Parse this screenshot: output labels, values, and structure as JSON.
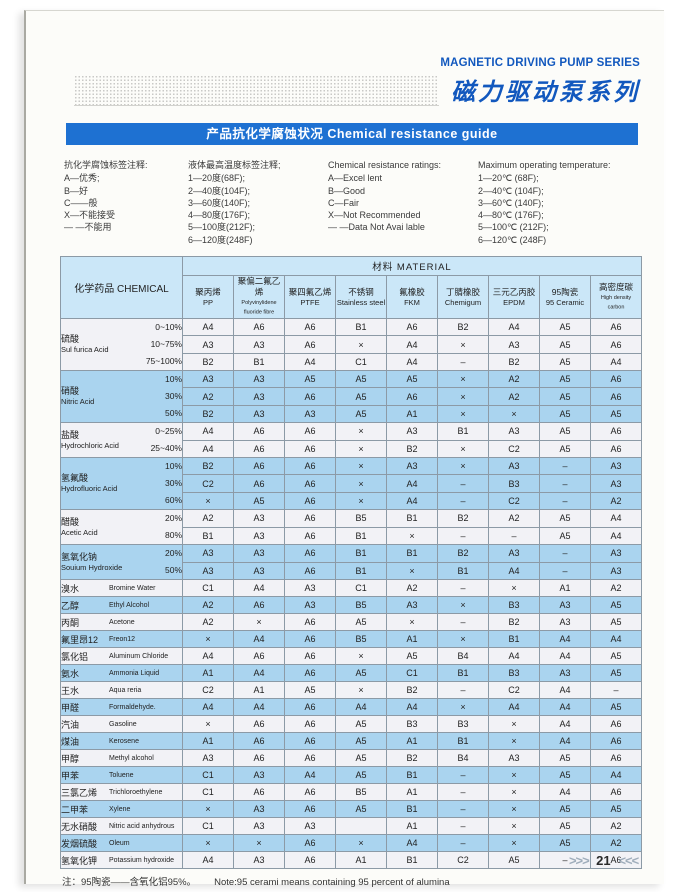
{
  "header": {
    "series_title_en": "MAGNETIC DRIVING PUMP SERIES",
    "series_title_cn": "磁力驱动泵系列",
    "banner": "产品抗化学腐蚀状况 Chemical resistance guide"
  },
  "legends": [
    {
      "title": "抗化学腐蚀标签注释:",
      "items": [
        "A—优秀;",
        "B—好",
        "C——般",
        "X—不能接受",
        "— —不能用"
      ]
    },
    {
      "title": "液体最高温度标签注释;",
      "items": [
        "1—20度(68F);",
        "2—40度(104F);",
        "3—60度(140F);",
        "4—80度(176F);",
        "5—100度(212F);",
        "6—120度(248F)"
      ]
    },
    {
      "title": "Chemical resistance ratings:",
      "items": [
        "A—Excel lent",
        "B—Good",
        "C—Fair",
        "X—Not Recommended",
        "— —Data Not Avai lable"
      ]
    },
    {
      "title": "Maximum operating temperature:",
      "items": [
        "1—20℃ (68F);",
        "2—40℃ (104F);",
        "3—60℃ (140F);",
        "4—80℃ (176F);",
        "5—100℃ (212F);",
        "6—120℃ (248F)"
      ]
    }
  ],
  "table": {
    "chemical_header": "化学药品 CHEMICAL",
    "material_header": "材料  MATERIAL",
    "materials": [
      {
        "cn": "聚丙烯",
        "en": "PP"
      },
      {
        "cn": "聚偏二氟乙烯",
        "en": "Polyvinylidene fluoride fibre"
      },
      {
        "cn": "聚四氟乙烯",
        "en": "PTFE"
      },
      {
        "cn": "不锈钢",
        "en": "Stainless steel"
      },
      {
        "cn": "氟橡胶",
        "en": "FKM"
      },
      {
        "cn": "丁腈橡胶",
        "en": "Chemigum"
      },
      {
        "cn": "三元乙丙胶",
        "en": "EPDM"
      },
      {
        "cn": "95陶瓷",
        "en": "95 Ceramic"
      },
      {
        "cn": "高密度碳",
        "en": "High density carbon"
      }
    ],
    "groups": [
      {
        "cn": "硫酸",
        "en": "Sul furica Acid",
        "shade": "light",
        "rows": [
          {
            "conc": "0~10%",
            "values": [
              "A4",
              "A6",
              "A6",
              "B1",
              "A6",
              "B2",
              "A4",
              "A5",
              "A6"
            ]
          },
          {
            "conc": "10~75%",
            "values": [
              "A3",
              "A3",
              "A6",
              "×",
              "A4",
              "×",
              "A3",
              "A5",
              "A6"
            ]
          },
          {
            "conc": "75~100%",
            "values": [
              "B2",
              "B1",
              "A4",
              "C1",
              "A4",
              "–",
              "B2",
              "A5",
              "A4"
            ]
          }
        ]
      },
      {
        "cn": "硝酸",
        "en": "Nitric Acid",
        "shade": "blue",
        "rows": [
          {
            "conc": "10%",
            "values": [
              "A3",
              "A3",
              "A5",
              "A5",
              "A5",
              "×",
              "A2",
              "A5",
              "A6"
            ]
          },
          {
            "conc": "30%",
            "values": [
              "A2",
              "A3",
              "A6",
              "A5",
              "A6",
              "×",
              "A2",
              "A5",
              "A6"
            ]
          },
          {
            "conc": "50%",
            "values": [
              "B2",
              "A3",
              "A3",
              "A5",
              "A1",
              "×",
              "×",
              "A5",
              "A5"
            ]
          }
        ]
      },
      {
        "cn": "盐酸",
        "en": "Hydrochloric Acid",
        "shade": "light",
        "rows": [
          {
            "conc": "0~25%",
            "values": [
              "A4",
              "A6",
              "A6",
              "×",
              "A3",
              "B1",
              "A3",
              "A5",
              "A6"
            ]
          },
          {
            "conc": "25~40%",
            "values": [
              "A4",
              "A6",
              "A6",
              "×",
              "B2",
              "×",
              "C2",
              "A5",
              "A6"
            ]
          }
        ]
      },
      {
        "cn": "氢氟酸",
        "en": "Hydrofluoric Acid",
        "shade": "blue",
        "rows": [
          {
            "conc": "10%",
            "values": [
              "B2",
              "A6",
              "A6",
              "×",
              "A3",
              "×",
              "A3",
              "–",
              "A3"
            ]
          },
          {
            "conc": "30%",
            "values": [
              "C2",
              "A6",
              "A6",
              "×",
              "A4",
              "–",
              "B3",
              "–",
              "A3"
            ]
          },
          {
            "conc": "60%",
            "values": [
              "×",
              "A5",
              "A6",
              "×",
              "A4",
              "–",
              "C2",
              "–",
              "A2"
            ]
          }
        ]
      },
      {
        "cn": "醋酸",
        "en": "Acetic Acid",
        "shade": "light",
        "rows": [
          {
            "conc": "20%",
            "values": [
              "A2",
              "A3",
              "A6",
              "B5",
              "B1",
              "B2",
              "A2",
              "A5",
              "A4"
            ]
          },
          {
            "conc": "80%",
            "values": [
              "B1",
              "A3",
              "A6",
              "B1",
              "×",
              "–",
              "–",
              "A5",
              "A4"
            ]
          }
        ]
      },
      {
        "cn": "氢氧化钠",
        "en": "Souium Hydroxide",
        "shade": "blue",
        "rows": [
          {
            "conc": "20%",
            "values": [
              "A3",
              "A3",
              "A6",
              "B1",
              "B1",
              "B2",
              "A3",
              "–",
              "A3"
            ]
          },
          {
            "conc": "50%",
            "values": [
              "A3",
              "A3",
              "A6",
              "B1",
              "×",
              "B1",
              "A4",
              "–",
              "A3"
            ]
          }
        ]
      },
      {
        "cn": "溴水",
        "en": "Bromine Water",
        "shade": "light",
        "rows": [
          {
            "conc": "",
            "values": [
              "C1",
              "A4",
              "A3",
              "C1",
              "A2",
              "–",
              "×",
              "A1",
              "A2"
            ]
          }
        ]
      },
      {
        "cn": "乙醇",
        "en": "Ethyl Alcohol",
        "shade": "blue",
        "rows": [
          {
            "conc": "",
            "values": [
              "A2",
              "A6",
              "A3",
              "B5",
              "A3",
              "×",
              "B3",
              "A3",
              "A5"
            ]
          }
        ]
      },
      {
        "cn": "丙酮",
        "en": "Acetone",
        "shade": "light",
        "rows": [
          {
            "conc": "",
            "values": [
              "A2",
              "×",
              "A6",
              "A5",
              "×",
              "–",
              "B2",
              "A3",
              "A5"
            ]
          }
        ]
      },
      {
        "cn": "氟里昂12",
        "en": "Freon12",
        "shade": "blue",
        "rows": [
          {
            "conc": "",
            "values": [
              "×",
              "A4",
              "A6",
              "B5",
              "A1",
              "×",
              "B1",
              "A4",
              "A4"
            ]
          }
        ]
      },
      {
        "cn": "氯化铝",
        "en": "Aluminum Chloride",
        "shade": "light",
        "rows": [
          {
            "conc": "",
            "values": [
              "A4",
              "A6",
              "A6",
              "×",
              "A5",
              "B4",
              "A4",
              "A4",
              "A5"
            ]
          }
        ]
      },
      {
        "cn": "氨水",
        "en": "Ammonia Liquid",
        "shade": "blue",
        "rows": [
          {
            "conc": "",
            "values": [
              "A1",
              "A4",
              "A6",
              "A5",
              "C1",
              "B1",
              "B3",
              "A3",
              "A5"
            ]
          }
        ]
      },
      {
        "cn": "王水",
        "en": "Aqua reria",
        "shade": "light",
        "rows": [
          {
            "conc": "",
            "values": [
              "C2",
              "A1",
              "A5",
              "×",
              "B2",
              "–",
              "C2",
              "A4",
              "–"
            ]
          }
        ]
      },
      {
        "cn": "甲醛",
        "en": "Formaldehyde.",
        "shade": "blue",
        "rows": [
          {
            "conc": "",
            "values": [
              "A4",
              "A4",
              "A6",
              "A4",
              "A4",
              "×",
              "A4",
              "A4",
              "A5"
            ]
          }
        ]
      },
      {
        "cn": "汽油",
        "en": "Gasoline",
        "shade": "light",
        "rows": [
          {
            "conc": "",
            "values": [
              "×",
              "A6",
              "A6",
              "A5",
              "B3",
              "B3",
              "×",
              "A4",
              "A6"
            ]
          }
        ]
      },
      {
        "cn": "煤油",
        "en": "Kerosene",
        "shade": "blue",
        "rows": [
          {
            "conc": "",
            "values": [
              "A1",
              "A6",
              "A6",
              "A5",
              "A1",
              "B1",
              "×",
              "A4",
              "A6"
            ]
          }
        ]
      },
      {
        "cn": "甲醇",
        "en": "Methyl alcohol",
        "shade": "light",
        "rows": [
          {
            "conc": "",
            "values": [
              "A3",
              "A6",
              "A6",
              "A5",
              "B2",
              "B4",
              "A3",
              "A5",
              "A6"
            ]
          }
        ]
      },
      {
        "cn": "甲苯",
        "en": "Toluene",
        "shade": "blue",
        "rows": [
          {
            "conc": "",
            "values": [
              "C1",
              "A3",
              "A4",
              "A5",
              "B1",
              "–",
              "×",
              "A5",
              "A4"
            ]
          }
        ]
      },
      {
        "cn": "三氯乙烯",
        "en": "Trichloroethylene",
        "shade": "light",
        "rows": [
          {
            "conc": "",
            "values": [
              "C1",
              "A6",
              "A6",
              "B5",
              "A1",
              "–",
              "×",
              "A4",
              "A6"
            ]
          }
        ]
      },
      {
        "cn": "二甲苯",
        "en": "Xylene",
        "shade": "blue",
        "rows": [
          {
            "conc": "",
            "values": [
              "×",
              "A3",
              "A6",
              "A5",
              "B1",
              "–",
              "×",
              "A5",
              "A5"
            ]
          }
        ]
      },
      {
        "cn": "无水硝酸",
        "en": "Nitric acid anhydrous",
        "shade": "light",
        "rows": [
          {
            "conc": "",
            "values": [
              "C1",
              "A3",
              "A3",
              "",
              "A1",
              "–",
              "×",
              "A5",
              "A2"
            ]
          }
        ]
      },
      {
        "cn": "发烟硫酸",
        "en": "Oleum",
        "shade": "blue",
        "rows": [
          {
            "conc": "",
            "values": [
              "×",
              "×",
              "A6",
              "×",
              "A4",
              "–",
              "×",
              "A5",
              "A2"
            ]
          }
        ]
      },
      {
        "cn": "氢氧化钾",
        "en": "Potassium hydroxide",
        "shade": "light",
        "rows": [
          {
            "conc": "",
            "values": [
              "A4",
              "A3",
              "A6",
              "A1",
              "B1",
              "C2",
              "A5",
              "–",
              "A6"
            ]
          }
        ]
      }
    ]
  },
  "footer": {
    "note_cn": "注：95陶瓷——含氧化铝95%。",
    "note_en": "Note:95 cerami means containing 95 percent of alumina"
  },
  "page_nav": {
    "prev": ">>>",
    "number": "21",
    "next": "<<<"
  }
}
